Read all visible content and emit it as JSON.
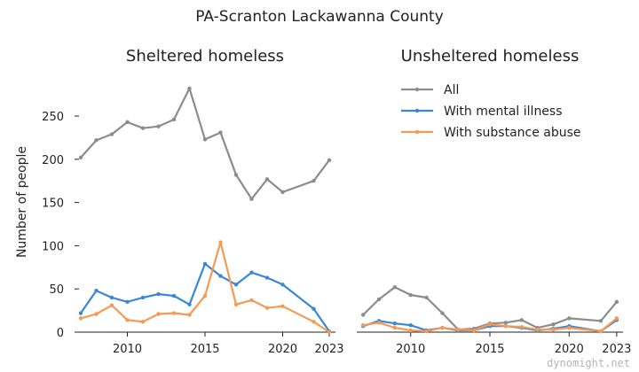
{
  "chart_data": {
    "type": "line",
    "title": "PA-Scranton Lackawanna County",
    "ylabel": "Number of people",
    "ylim": [
      0,
      290
    ],
    "yticks": [
      0,
      50,
      100,
      150,
      200,
      250
    ],
    "xticks": [
      2010,
      2015,
      2020,
      2023
    ],
    "xlim": [
      2006.6,
      2023.4
    ],
    "legend_location": "upper right of right panel",
    "colors": {
      "All": "#8c8c8c",
      "With mental illness": "#3a86d8",
      "With substance abuse": "#f39a55"
    },
    "panels": [
      {
        "title": "Sheltered homeless",
        "x": [
          2007,
          2008,
          2009,
          2010,
          2011,
          2012,
          2013,
          2014,
          2015,
          2016,
          2017,
          2018,
          2019,
          2020,
          2022,
          2023
        ],
        "series": [
          {
            "name": "All",
            "values": [
              202,
              222,
              229,
              243,
              236,
              238,
              246,
              282,
              223,
              231,
              182,
              154,
              177,
              162,
              175,
              199
            ]
          },
          {
            "name": "With mental illness",
            "values": [
              22,
              48,
              40,
              35,
              40,
              44,
              42,
              32,
              79,
              65,
              55,
              69,
              63,
              55,
              27,
              1
            ]
          },
          {
            "name": "With substance abuse",
            "values": [
              16,
              21,
              31,
              14,
              12,
              21,
              22,
              20,
              42,
              104,
              32,
              37,
              28,
              30,
              12,
              0
            ]
          }
        ]
      },
      {
        "title": "Unsheltered homeless",
        "x": [
          2007,
          2008,
          2009,
          2010,
          2011,
          2012,
          2013,
          2014,
          2015,
          2016,
          2017,
          2018,
          2019,
          2020,
          2022,
          2023
        ],
        "series": [
          {
            "name": "All",
            "values": [
              20,
              38,
              52,
              43,
              40,
              22,
              3,
              4,
              10,
              11,
              14,
              5,
              9,
              16,
              13,
              35
            ]
          },
          {
            "name": "With mental illness",
            "values": [
              7,
              13,
              10,
              8,
              2,
              5,
              2,
              2,
              7,
              7,
              5,
              2,
              4,
              7,
              1,
              14
            ]
          },
          {
            "name": "With substance abuse",
            "values": [
              8,
              11,
              5,
              2,
              1,
              5,
              3,
              2,
              9,
              7,
              6,
              3,
              3,
              5,
              1,
              16
            ]
          }
        ]
      }
    ]
  },
  "watermark": "dynomight.net"
}
